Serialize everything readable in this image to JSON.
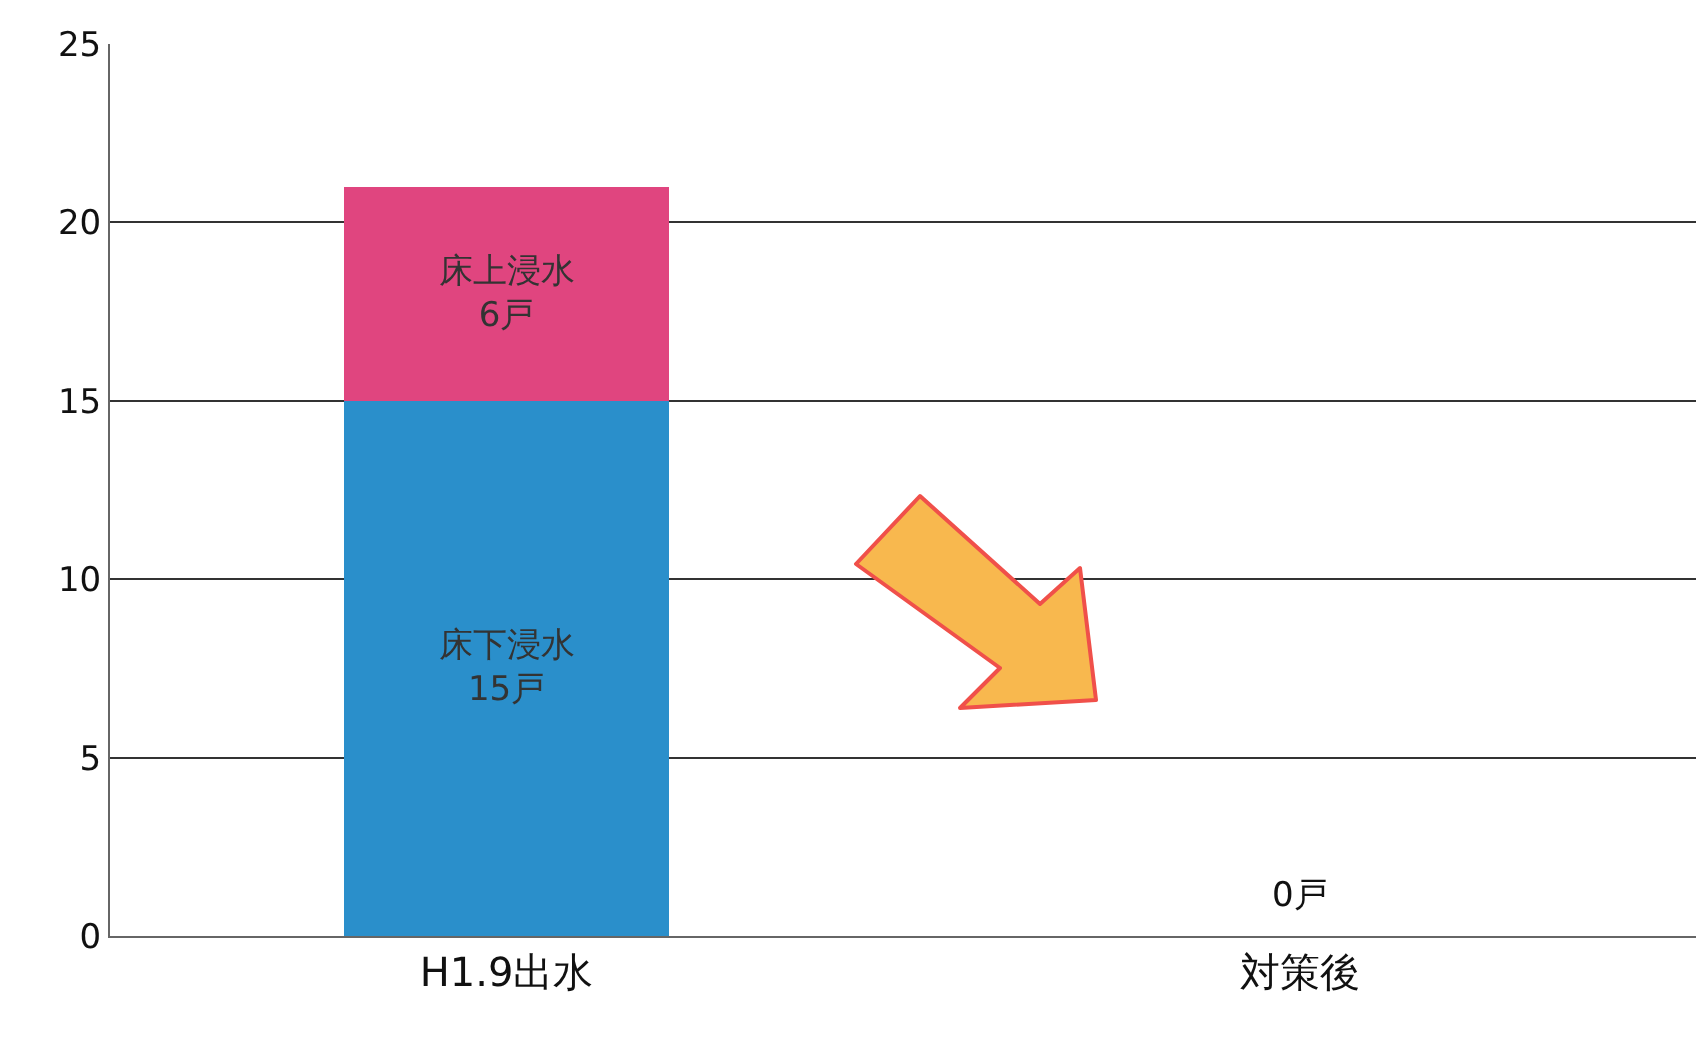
{
  "chart_data": {
    "type": "bar",
    "stacked": true,
    "categories": [
      "H1.9出水",
      "対策後"
    ],
    "series": [
      {
        "name": "床下浸水",
        "color": "#2a8fcb",
        "values": [
          15,
          0
        ],
        "value_labels": [
          "15戸",
          null
        ]
      },
      {
        "name": "床上浸水",
        "color": "#e0457f",
        "values": [
          6,
          0
        ],
        "value_labels": [
          "6戸",
          null
        ]
      }
    ],
    "totals": [
      null,
      "0戸"
    ],
    "ylim": [
      0,
      25
    ],
    "yticks": [
      0,
      5,
      10,
      15,
      20,
      25
    ],
    "grid": "y",
    "legend": false
  }
}
